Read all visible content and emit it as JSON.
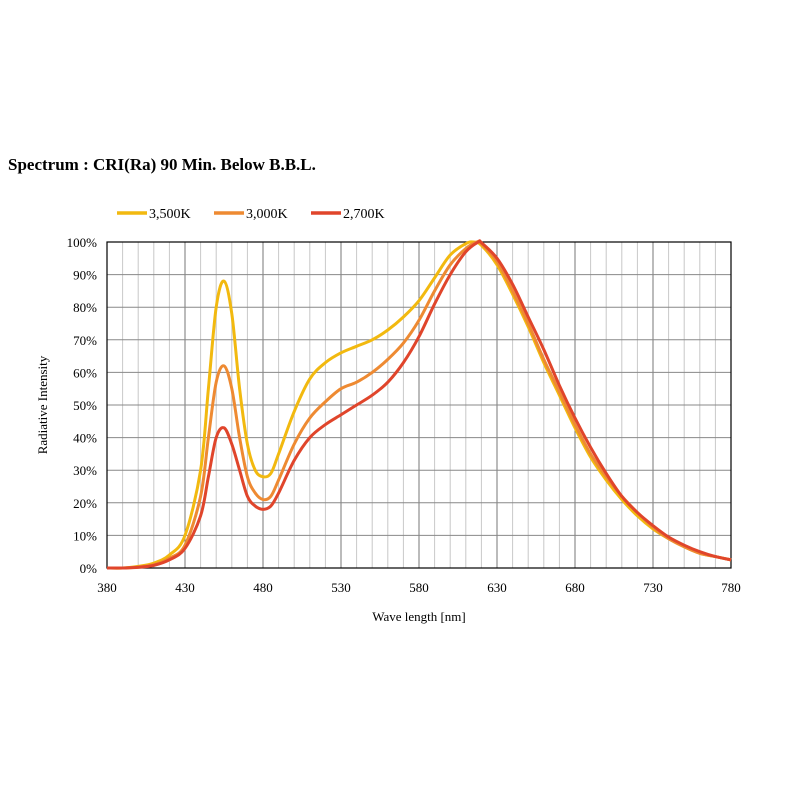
{
  "chart_data": {
    "type": "line",
    "title": "Spectrum : CRI(Ra) 90 Min. Below B.B.L.",
    "xlabel": "Wave length [nm]",
    "ylabel": "Radiative Intensity",
    "xlim": [
      380,
      780
    ],
    "ylim": [
      0,
      100
    ],
    "xticks": [
      "380",
      "430",
      "480",
      "530",
      "580",
      "630",
      "680",
      "730",
      "780"
    ],
    "yticks": [
      "0%",
      "10%",
      "20%",
      "30%",
      "40%",
      "50%",
      "60%",
      "70%",
      "80%",
      "90%",
      "100%"
    ],
    "grid": true,
    "legend_position": "top-left",
    "series": [
      {
        "name": "3,500K",
        "color": "#f2b90f",
        "x": [
          380,
          390,
          400,
          410,
          420,
          430,
          440,
          445,
          450,
          455,
          460,
          465,
          470,
          475,
          480,
          485,
          490,
          500,
          510,
          520,
          530,
          540,
          550,
          560,
          570,
          580,
          590,
          600,
          610,
          615,
          620,
          630,
          640,
          650,
          660,
          670,
          680,
          690,
          700,
          710,
          720,
          730,
          740,
          750,
          760,
          770,
          780
        ],
        "y": [
          0,
          0,
          0.5,
          1.5,
          4,
          10,
          30,
          55,
          80,
          88,
          78,
          55,
          38,
          30,
          28,
          29,
          35,
          48,
          58,
          63,
          66,
          68,
          70,
          73,
          77,
          82,
          89,
          96,
          99.5,
          100,
          99,
          93,
          84,
          74,
          63,
          53,
          43,
          34,
          27,
          21,
          16,
          12,
          9,
          6.5,
          4.5,
          3.5,
          2.5
        ]
      },
      {
        "name": "3,000K",
        "color": "#ee8a32",
        "x": [
          380,
          390,
          400,
          410,
          420,
          430,
          440,
          445,
          450,
          455,
          460,
          465,
          470,
          475,
          480,
          485,
          490,
          500,
          510,
          520,
          530,
          540,
          550,
          560,
          570,
          580,
          590,
          600,
          610,
          617,
          620,
          630,
          640,
          650,
          660,
          670,
          680,
          690,
          700,
          710,
          720,
          730,
          740,
          750,
          760,
          770,
          780
        ],
        "y": [
          0,
          0,
          0.3,
          1,
          3,
          7,
          22,
          40,
          57,
          62,
          55,
          40,
          28,
          23,
          21,
          22,
          27,
          38,
          46,
          51,
          55,
          57,
          60,
          64,
          69,
          76,
          85,
          93,
          98,
          100,
          99.5,
          94,
          85,
          75,
          64,
          54,
          44,
          35,
          28,
          22,
          17,
          12.5,
          9,
          6.5,
          4.5,
          3.5,
          2.5
        ]
      },
      {
        "name": "2,700K",
        "color": "#e0452b",
        "x": [
          380,
          390,
          400,
          410,
          420,
          430,
          440,
          445,
          450,
          455,
          460,
          465,
          470,
          475,
          480,
          485,
          490,
          500,
          510,
          520,
          530,
          540,
          550,
          560,
          570,
          580,
          590,
          600,
          610,
          618,
          620,
          630,
          640,
          650,
          660,
          670,
          680,
          690,
          700,
          710,
          720,
          730,
          740,
          750,
          760,
          770,
          780
        ],
        "y": [
          0,
          0,
          0.2,
          0.8,
          2.5,
          6,
          16,
          28,
          40,
          43,
          38,
          30,
          22,
          19,
          18,
          19,
          23,
          33,
          40,
          44,
          47,
          50,
          53,
          57,
          63,
          71,
          81,
          90,
          97,
          100,
          99.8,
          95,
          87,
          77,
          67,
          56,
          46,
          37,
          29,
          22,
          17,
          13,
          9.5,
          7,
          5,
          3.5,
          2.5
        ]
      }
    ]
  }
}
